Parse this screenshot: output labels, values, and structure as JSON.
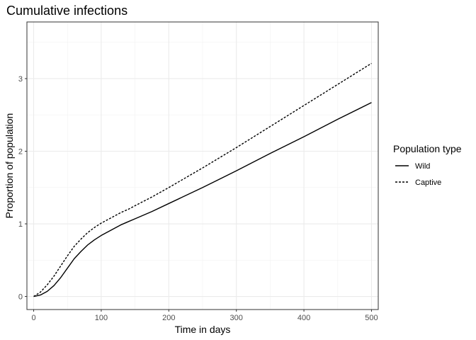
{
  "chart_data": {
    "type": "line",
    "title": "Cumulative infections",
    "xlabel": "Time in days",
    "ylabel": "Proportion of population",
    "xlim": [
      -10,
      510
    ],
    "ylim": [
      -0.18,
      3.78
    ],
    "x_ticks": [
      0,
      100,
      200,
      300,
      400,
      500
    ],
    "y_ticks": [
      0,
      1,
      2,
      3
    ],
    "grid": true,
    "legend": {
      "title": "Population type",
      "position": "right"
    },
    "series": [
      {
        "name": "Wild",
        "line_style": "solid",
        "color": "#000000",
        "x": [
          0,
          10,
          20,
          30,
          40,
          50,
          60,
          70,
          80,
          90,
          100,
          110,
          120,
          130,
          140,
          150,
          175,
          200,
          250,
          300,
          350,
          400,
          450,
          500
        ],
        "y": [
          0,
          0.02,
          0.07,
          0.15,
          0.26,
          0.39,
          0.52,
          0.62,
          0.71,
          0.78,
          0.84,
          0.89,
          0.94,
          0.99,
          1.03,
          1.07,
          1.17,
          1.28,
          1.5,
          1.73,
          1.97,
          2.2,
          2.44,
          2.67
        ]
      },
      {
        "name": "Captive",
        "line_style": "dotted",
        "color": "#000000",
        "x": [
          0,
          10,
          20,
          30,
          40,
          50,
          60,
          70,
          80,
          90,
          100,
          110,
          120,
          130,
          140,
          150,
          175,
          200,
          250,
          300,
          350,
          400,
          450,
          500
        ],
        "y": [
          0,
          0.06,
          0.16,
          0.28,
          0.42,
          0.56,
          0.69,
          0.79,
          0.88,
          0.95,
          1.01,
          1.06,
          1.11,
          1.16,
          1.2,
          1.25,
          1.37,
          1.5,
          1.77,
          2.05,
          2.34,
          2.63,
          2.92,
          3.21
        ]
      }
    ]
  }
}
